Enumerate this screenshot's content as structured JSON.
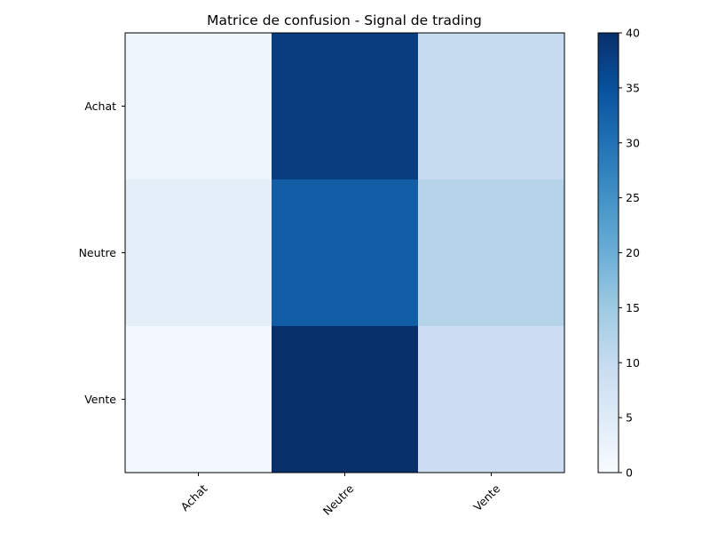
{
  "chart_data": {
    "type": "heatmap",
    "title": "Matrice de confusion - Signal de trading",
    "xlabel": "",
    "ylabel": "",
    "x_categories": [
      "Achat",
      "Neutre",
      "Vente"
    ],
    "y_categories": [
      "Achat",
      "Neutre",
      "Vente"
    ],
    "matrix": [
      [
        2,
        38,
        10
      ],
      [
        4,
        33,
        12
      ],
      [
        1,
        40,
        9
      ]
    ],
    "colormap": "Blues",
    "colorbar": {
      "range": [
        0,
        40
      ],
      "ticks": [
        "0",
        "5",
        "10",
        "15",
        "20",
        "25",
        "30",
        "35",
        "40"
      ]
    },
    "colorscale_hex": [
      "#f7fbff",
      "#deebf7",
      "#c6dbef",
      "#9ecae1",
      "#6baed6",
      "#4292c6",
      "#2171b5",
      "#08519c",
      "#08306b"
    ],
    "x_tick_rotation_deg": 45,
    "grid": false
  }
}
